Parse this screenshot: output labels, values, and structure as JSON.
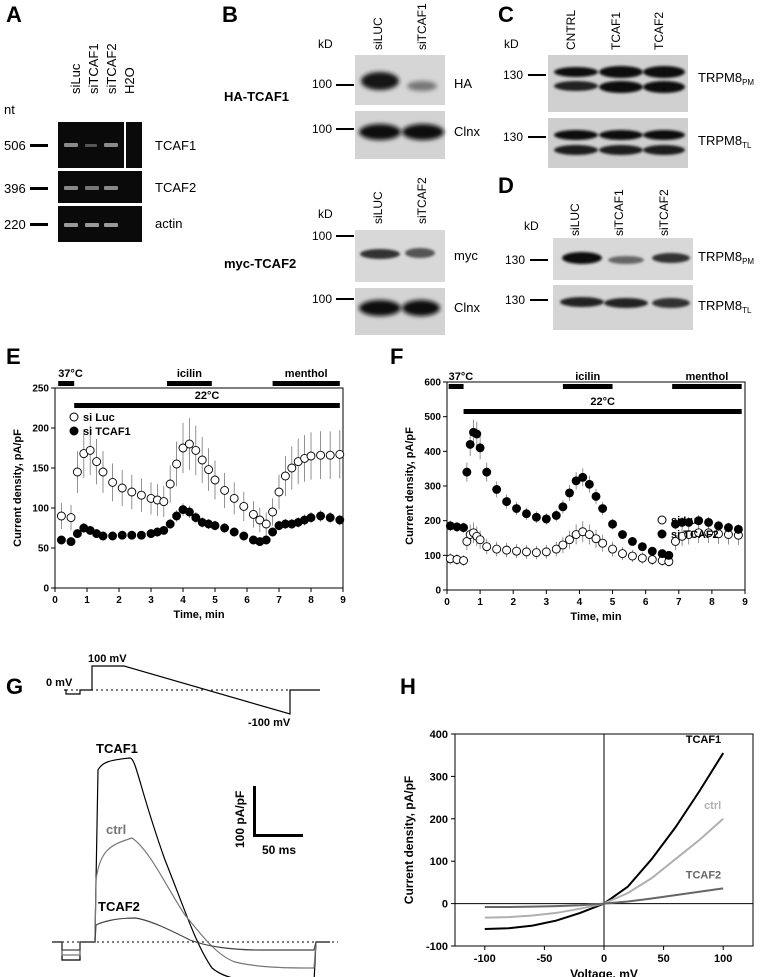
{
  "panels": {
    "A": {
      "letter": "A",
      "unit_label": "nt",
      "lane_labels": [
        "siLuc",
        "siTCAF1",
        "siTCAF2",
        "H2O"
      ],
      "markers": [
        "506",
        "396",
        "220"
      ],
      "rows": [
        "TCAF1",
        "TCAF2",
        "actin"
      ]
    },
    "B": {
      "letter": "B",
      "top": {
        "kd_label": "kD",
        "lanes": [
          "siLUC",
          "siTCAF1"
        ],
        "construct": "HA-TCAF1",
        "markers": [
          "100",
          "100"
        ],
        "rows": [
          "HA",
          "Clnx"
        ]
      },
      "bottom": {
        "kd_label": "kD",
        "lanes": [
          "siLUC",
          "siTCAF2"
        ],
        "construct": "myc-TCAF2",
        "markers": [
          "100",
          "100"
        ],
        "rows": [
          "myc",
          "Clnx"
        ]
      }
    },
    "C": {
      "letter": "C",
      "kd_label": "kD",
      "lanes": [
        "CNTRL",
        "TCAF1",
        "TCAF2"
      ],
      "markers": [
        "130",
        "130"
      ],
      "rows": [
        {
          "main": "TRPM8",
          "sub": "PM"
        },
        {
          "main": "TRPM8",
          "sub": "TL"
        }
      ]
    },
    "D": {
      "letter": "D",
      "kd_label": "kD",
      "lanes": [
        "siLUC",
        "siTCAF1",
        "siTCAF2"
      ],
      "markers": [
        "130",
        "130"
      ],
      "rows": [
        {
          "main": "TRPM8",
          "sub": "PM"
        },
        {
          "main": "TRPM8",
          "sub": "TL"
        }
      ]
    },
    "E": {
      "letter": "E"
    },
    "F": {
      "letter": "F"
    },
    "G": {
      "letter": "G",
      "protocol_labels": [
        "0 mV",
        "100 mV",
        "-100 mV"
      ],
      "trace_labels": [
        "TCAF1",
        "ctrl",
        "TCAF2"
      ],
      "scale_y": "100 pA/pF",
      "scale_x": "50 ms"
    },
    "H": {
      "letter": "H"
    }
  },
  "chart_data": [
    {
      "panel": "E",
      "type": "scatter",
      "xlabel": "Time, min",
      "ylabel": "Current density, pA/pF",
      "xlim": [
        0,
        9
      ],
      "ylim": [
        0,
        250
      ],
      "xticks": [
        0,
        1,
        2,
        3,
        4,
        5,
        6,
        7,
        8,
        9
      ],
      "yticks": [
        0,
        50,
        100,
        150,
        200,
        250
      ],
      "annotations": [
        {
          "text": "37°C",
          "x_range": [
            0.1,
            0.6
          ],
          "row": "upper"
        },
        {
          "text": "icilin",
          "x_range": [
            3.5,
            4.9
          ],
          "row": "upper"
        },
        {
          "text": "menthol",
          "x_range": [
            6.8,
            8.9
          ],
          "row": "upper"
        },
        {
          "text": "22°C",
          "x_range": [
            0.6,
            8.9
          ],
          "row": "lower"
        }
      ],
      "legend": [
        "si Luc",
        "si TCAF1"
      ],
      "legend_position": "upper-left",
      "series": [
        {
          "name": "si Luc",
          "marker": "open-circle",
          "x": [
            0.2,
            0.5,
            0.7,
            0.9,
            1.1,
            1.3,
            1.5,
            1.8,
            2.1,
            2.4,
            2.7,
            3.0,
            3.2,
            3.4,
            3.6,
            3.8,
            4.0,
            4.2,
            4.4,
            4.6,
            4.8,
            5.0,
            5.3,
            5.6,
            5.9,
            6.2,
            6.4,
            6.6,
            6.8,
            7.0,
            7.2,
            7.4,
            7.6,
            7.8,
            8.0,
            8.3,
            8.6,
            8.9
          ],
          "y": [
            90,
            88,
            145,
            168,
            172,
            158,
            145,
            132,
            125,
            120,
            116,
            112,
            110,
            108,
            130,
            155,
            175,
            180,
            172,
            160,
            148,
            135,
            122,
            112,
            102,
            92,
            85,
            80,
            95,
            120,
            140,
            150,
            158,
            162,
            165,
            166,
            166,
            167
          ]
        },
        {
          "name": "si TCAF1",
          "marker": "filled-circle",
          "x": [
            0.2,
            0.5,
            0.7,
            0.9,
            1.1,
            1.3,
            1.5,
            1.8,
            2.1,
            2.4,
            2.7,
            3.0,
            3.2,
            3.4,
            3.6,
            3.8,
            4.0,
            4.2,
            4.4,
            4.6,
            4.8,
            5.0,
            5.3,
            5.6,
            5.9,
            6.2,
            6.4,
            6.6,
            6.8,
            7.0,
            7.2,
            7.4,
            7.6,
            7.8,
            8.0,
            8.3,
            8.6,
            8.9
          ],
          "y": [
            60,
            58,
            68,
            75,
            72,
            68,
            65,
            65,
            66,
            66,
            66,
            68,
            70,
            72,
            80,
            90,
            98,
            95,
            88,
            82,
            80,
            78,
            75,
            70,
            65,
            60,
            58,
            60,
            70,
            78,
            80,
            80,
            82,
            85,
            88,
            90,
            88,
            85
          ]
        }
      ]
    },
    {
      "panel": "F",
      "type": "scatter",
      "xlabel": "Time, min",
      "ylabel": "Current density, pA/pF",
      "xlim": [
        0,
        9
      ],
      "ylim": [
        0,
        600
      ],
      "xticks": [
        0,
        1,
        2,
        3,
        4,
        5,
        6,
        7,
        8,
        9
      ],
      "yticks": [
        0,
        100,
        200,
        300,
        400,
        500,
        600
      ],
      "annotations": [
        {
          "text": "37°C",
          "x_range": [
            0.05,
            0.5
          ],
          "row": "upper"
        },
        {
          "text": "icilin",
          "x_range": [
            3.5,
            5.0
          ],
          "row": "upper"
        },
        {
          "text": "menthol",
          "x_range": [
            6.8,
            8.9
          ],
          "row": "upper"
        },
        {
          "text": "22°C",
          "x_range": [
            0.5,
            8.9
          ],
          "row": "lower"
        }
      ],
      "legend": [
        "si Luc",
        "si TCAF2"
      ],
      "legend_position": "middle-right",
      "series": [
        {
          "name": "si Luc",
          "marker": "open-circle",
          "x": [
            0.1,
            0.3,
            0.5,
            0.6,
            0.7,
            0.8,
            0.9,
            1.0,
            1.2,
            1.5,
            1.8,
            2.1,
            2.4,
            2.7,
            3.0,
            3.3,
            3.5,
            3.7,
            3.9,
            4.1,
            4.3,
            4.5,
            4.7,
            5.0,
            5.3,
            5.6,
            5.9,
            6.2,
            6.5,
            6.7,
            6.9,
            7.1,
            7.3,
            7.6,
            7.9,
            8.2,
            8.5,
            8.8
          ],
          "y": [
            90,
            88,
            85,
            140,
            160,
            165,
            155,
            145,
            125,
            118,
            115,
            112,
            110,
            108,
            110,
            118,
            130,
            145,
            160,
            168,
            160,
            148,
            135,
            118,
            105,
            98,
            92,
            88,
            85,
            82,
            140,
            155,
            160,
            165,
            165,
            162,
            160,
            158
          ]
        },
        {
          "name": "si TCAF2",
          "marker": "filled-circle",
          "x": [
            0.1,
            0.3,
            0.5,
            0.6,
            0.7,
            0.8,
            0.9,
            1.0,
            1.2,
            1.5,
            1.8,
            2.1,
            2.4,
            2.7,
            3.0,
            3.3,
            3.5,
            3.7,
            3.9,
            4.1,
            4.3,
            4.5,
            4.7,
            5.0,
            5.3,
            5.6,
            5.9,
            6.2,
            6.5,
            6.7,
            6.9,
            7.1,
            7.3,
            7.6,
            7.9,
            8.2,
            8.5,
            8.8
          ],
          "y": [
            185,
            182,
            180,
            340,
            420,
            455,
            450,
            410,
            340,
            290,
            255,
            235,
            220,
            210,
            205,
            215,
            240,
            280,
            315,
            325,
            305,
            270,
            235,
            190,
            160,
            140,
            125,
            112,
            105,
            100,
            190,
            195,
            195,
            200,
            195,
            185,
            180,
            175
          ]
        }
      ]
    },
    {
      "panel": "G",
      "type": "line",
      "xlabel": "",
      "ylabel": "",
      "series": [
        {
          "name": "TCAF1",
          "y_peak": 275,
          "y_final": -85
        },
        {
          "name": "ctrl",
          "y_peak": 180,
          "y_final": -65
        },
        {
          "name": "TCAF2",
          "y_peak": 45,
          "y_final": -25
        }
      ]
    },
    {
      "panel": "H",
      "type": "line",
      "xlabel": "Voltage, mV",
      "ylabel": "Current density, pA/pF",
      "xlim": [
        -125,
        125
      ],
      "ylim": [
        -100,
        400
      ],
      "xticks": [
        -100,
        -50,
        0,
        50,
        100
      ],
      "yticks": [
        -100,
        0,
        100,
        200,
        300,
        400
      ],
      "series": [
        {
          "name": "TCAF1",
          "x": [
            -100,
            -80,
            -60,
            -40,
            -20,
            0,
            20,
            40,
            60,
            80,
            100
          ],
          "y": [
            -60,
            -58,
            -52,
            -40,
            -22,
            0,
            40,
            105,
            180,
            265,
            355
          ]
        },
        {
          "name": "ctrl",
          "x": [
            -100,
            -80,
            -60,
            -40,
            -20,
            0,
            20,
            40,
            60,
            80,
            100
          ],
          "y": [
            -33,
            -32,
            -28,
            -22,
            -12,
            0,
            25,
            60,
            105,
            150,
            200
          ]
        },
        {
          "name": "TCAF2",
          "x": [
            -100,
            -80,
            -60,
            -40,
            -20,
            0,
            20,
            40,
            60,
            80,
            100
          ],
          "y": [
            -8,
            -8,
            -7,
            -6,
            -4,
            0,
            5,
            12,
            20,
            28,
            36
          ]
        }
      ]
    }
  ]
}
